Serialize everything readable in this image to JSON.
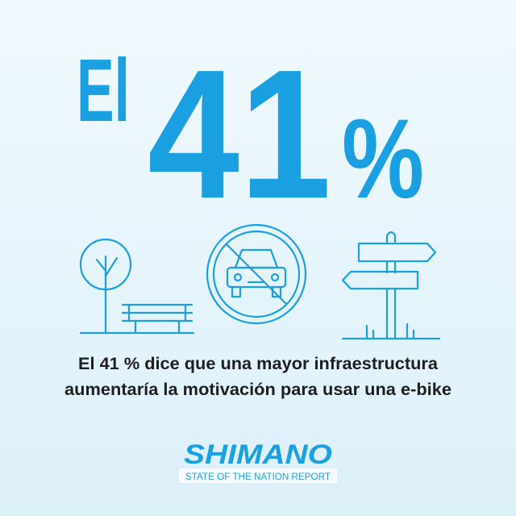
{
  "headline": {
    "prefix": "El",
    "number": "41",
    "suffix": "%"
  },
  "caption": {
    "line1": "El 41 % dice que una mayor infraestructura",
    "line2": "aumentaría la motivación para usar una e-bike"
  },
  "brand": {
    "name": "SHIMANO",
    "tagline": "STATE OF THE NATION REPORT"
  }
}
